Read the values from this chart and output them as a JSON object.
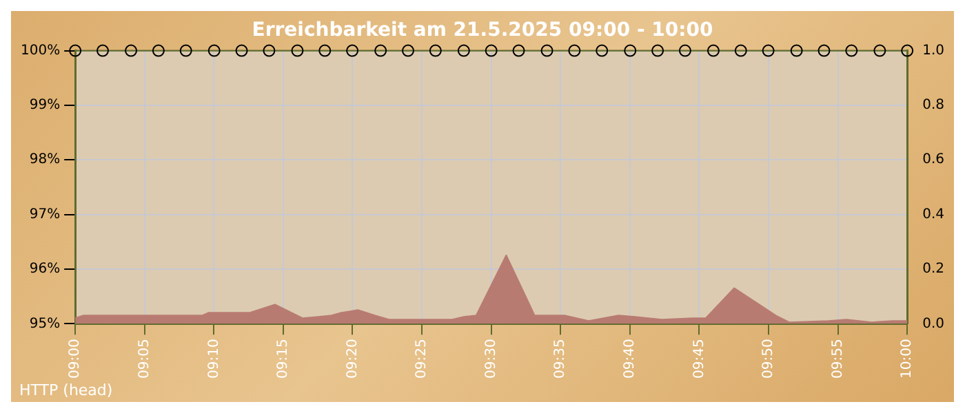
{
  "chart_data": {
    "type": "line",
    "title": "Erreichbarkeit am 21.5.2025 09:00 - 10:00",
    "xlim": [
      9,
      10
    ],
    "xticks": [
      {
        "value": 9,
        "label": "09:00"
      },
      {
        "value": 9.0833,
        "label": "09:05"
      },
      {
        "value": 9.1667,
        "label": "09:10"
      },
      {
        "value": 9.25,
        "label": "09:15"
      },
      {
        "value": 9.3333,
        "label": "09:20"
      },
      {
        "value": 9.4167,
        "label": "09:25"
      },
      {
        "value": 9.5,
        "label": "09:30"
      },
      {
        "value": 9.5833,
        "label": "09:35"
      },
      {
        "value": 9.6667,
        "label": "09:40"
      },
      {
        "value": 9.75,
        "label": "09:45"
      },
      {
        "value": 9.8333,
        "label": "09:50"
      },
      {
        "value": 9.9167,
        "label": "09:55"
      },
      {
        "value": 10,
        "label": "10:00"
      }
    ],
    "ylim": [
      95,
      100
    ],
    "yticks": [
      {
        "value": 95,
        "label": "95%"
      },
      {
        "value": 96,
        "label": "96%"
      },
      {
        "value": 97,
        "label": "97%"
      },
      {
        "value": 98,
        "label": "98%"
      },
      {
        "value": 99,
        "label": "99%"
      },
      {
        "value": 100,
        "label": "100%"
      }
    ],
    "y2lim": [
      0,
      1
    ],
    "y2ticks": [
      {
        "value": 0,
        "label": "0.0"
      },
      {
        "value": 0.2,
        "label": "0.2"
      },
      {
        "value": 0.4,
        "label": "0.4"
      },
      {
        "value": 0.6,
        "label": "0.6"
      },
      {
        "value": 0.8,
        "label": "0.8"
      },
      {
        "value": 1,
        "label": "1.0"
      }
    ],
    "grid": true,
    "series": [
      {
        "type": "area",
        "axis": "y2",
        "color": "#b87b72",
        "marker": "none",
        "x": [
          9,
          9.01,
          9.027,
          9.153,
          9.16,
          9.21,
          9.24,
          9.273,
          9.292,
          9.308,
          9.32,
          9.34,
          9.36,
          9.377,
          9.453,
          9.467,
          9.482,
          9.518,
          9.552,
          9.588,
          9.617,
          9.653,
          9.673,
          9.705,
          9.742,
          9.758,
          9.792,
          9.842,
          9.858,
          9.905,
          9.927,
          9.957,
          9.982,
          10
        ],
        "values": [
          0.02,
          0.03,
          0.03,
          0.03,
          0.04,
          0.04,
          0.07,
          0.02,
          0.025,
          0.03,
          0.04,
          0.05,
          0.03,
          0.015,
          0.015,
          0.025,
          0.03,
          0.25,
          0.03,
          0.03,
          0.01,
          0.03,
          0.025,
          0.015,
          0.02,
          0.02,
          0.13,
          0.03,
          0.005,
          0.01,
          0.015,
          0.005,
          0.01,
          0.01
        ]
      },
      {
        "type": "line",
        "axis": "y",
        "color": "#5f6b2e",
        "marker": "circle",
        "x": [
          9,
          9.033,
          9.067,
          9.1,
          9.133,
          9.167,
          9.2,
          9.233,
          9.267,
          9.3,
          9.333,
          9.367,
          9.4,
          9.433,
          9.467,
          9.5,
          9.533,
          9.567,
          9.6,
          9.633,
          9.667,
          9.7,
          9.733,
          9.767,
          9.8,
          9.833,
          9.867,
          9.9,
          9.933,
          9.967,
          10
        ],
        "values": [
          100,
          100,
          100,
          100,
          100,
          100,
          100,
          100,
          100,
          100,
          100,
          100,
          100,
          100,
          100,
          100,
          100,
          100,
          100,
          100,
          100,
          100,
          100,
          100,
          100,
          100,
          100,
          100,
          100,
          100,
          100
        ]
      }
    ],
    "annotations": [
      "HTTP (head)"
    ]
  }
}
